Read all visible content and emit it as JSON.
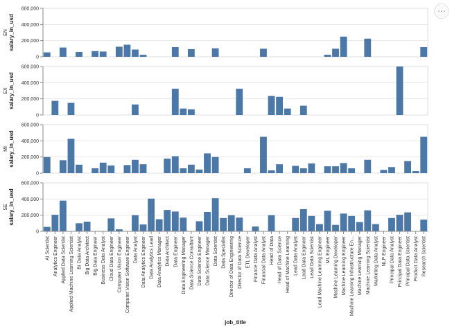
{
  "ui": {
    "menu_icon": "ellipsis-icon",
    "menu_label": "⋯"
  },
  "colors": {
    "bar": "#4c78a8",
    "grid": "#e6e6e6",
    "axis": "#888888"
  },
  "chart_data": {
    "type": "bar",
    "facet_field": "experience_level",
    "xlabel": "job_title",
    "ylabel": "salary_in_usd",
    "ylim": [
      0,
      600000
    ],
    "yticks": [
      0,
      200000,
      400000,
      600000
    ],
    "ytick_labels": [
      "0",
      "200,000",
      "400,000",
      "600,000"
    ],
    "categories": [
      "AI Scientist",
      "Analytics Engineer",
      "Applied Data Scientist",
      "Applied Machine Learning Scientist",
      "BI Data Analyst",
      "Big Data Architect",
      "Big Data Engineer",
      "Business Data Analyst",
      "Cloud Data Engineer",
      "Computer Vision Engineer",
      "Computer Vision Software Engineer",
      "Data Analyst",
      "Data Analytics Engineer",
      "Data Analytics Lead",
      "Data Analytics Manager",
      "Data Architect",
      "Data Engineer",
      "Data Engineering Manager",
      "Data Science Consultant",
      "Data Science Engineer",
      "Data Science Manager",
      "Data Scientist",
      "Data Specialist",
      "Director of Data Engineering",
      "Director of Data Science",
      "ETL Developer",
      "Finance Data Analyst",
      "Financial Data Analyst",
      "Head of Data",
      "Head of Data Science",
      "Head of Machine Learning",
      "Lead Data Analyst",
      "Lead Data Engineer",
      "Lead Data Scientist",
      "Lead Machine Learning Engineer",
      "ML Engineer",
      "Machine Learning Developer",
      "Machine Learning Engineer",
      "Machine Learning Infrastructure En...",
      "Machine Learning Manager",
      "Machine Learning Scientist",
      "Marketing Data Analyst",
      "NLP Engineer",
      "Principal Data Analyst",
      "Principal Data Engineer",
      "Principal Data Scientist",
      "Product Data Analyst",
      "Research Scientist"
    ],
    "series": [
      {
        "name": "EN",
        "values": [
          55000,
          null,
          115000,
          null,
          60000,
          null,
          70000,
          65000,
          null,
          125000,
          150000,
          90000,
          25000,
          null,
          null,
          null,
          120000,
          null,
          95000,
          null,
          null,
          105000,
          null,
          null,
          null,
          null,
          null,
          100000,
          null,
          null,
          null,
          null,
          null,
          null,
          null,
          25000,
          100000,
          250000,
          null,
          null,
          225000,
          null,
          null,
          null,
          null,
          null,
          null,
          120000
        ]
      },
      {
        "name": "EX",
        "values": [
          null,
          175000,
          null,
          150000,
          null,
          null,
          null,
          null,
          null,
          null,
          null,
          130000,
          null,
          null,
          null,
          null,
          325000,
          80000,
          70000,
          null,
          null,
          null,
          null,
          null,
          325000,
          null,
          null,
          null,
          235000,
          225000,
          80000,
          null,
          115000,
          null,
          null,
          null,
          null,
          null,
          null,
          null,
          null,
          null,
          null,
          null,
          600000,
          null,
          null,
          null
        ]
      },
      {
        "name": "MI",
        "values": [
          200000,
          null,
          160000,
          425000,
          105000,
          null,
          60000,
          130000,
          95000,
          null,
          100000,
          165000,
          110000,
          null,
          null,
          180000,
          210000,
          60000,
          105000,
          45000,
          245000,
          200000,
          null,
          null,
          null,
          60000,
          null,
          450000,
          35000,
          110000,
          null,
          90000,
          60000,
          120000,
          null,
          85000,
          85000,
          125000,
          60000,
          null,
          165000,
          null,
          40000,
          75000,
          null,
          150000,
          25000,
          450000
        ]
      },
      {
        "name": "SE",
        "values": [
          55000,
          205000,
          380000,
          null,
          100000,
          120000,
          null,
          null,
          160000,
          25000,
          null,
          200000,
          85000,
          405000,
          150000,
          265000,
          245000,
          170000,
          null,
          125000,
          240000,
          410000,
          165000,
          200000,
          170000,
          null,
          60000,
          null,
          200000,
          null,
          null,
          165000,
          275000,
          190000,
          90000,
          255000,
          80000,
          220000,
          190000,
          115000,
          260000,
          90000,
          null,
          165000,
          205000,
          235000,
          null,
          145000
        ]
      }
    ]
  }
}
